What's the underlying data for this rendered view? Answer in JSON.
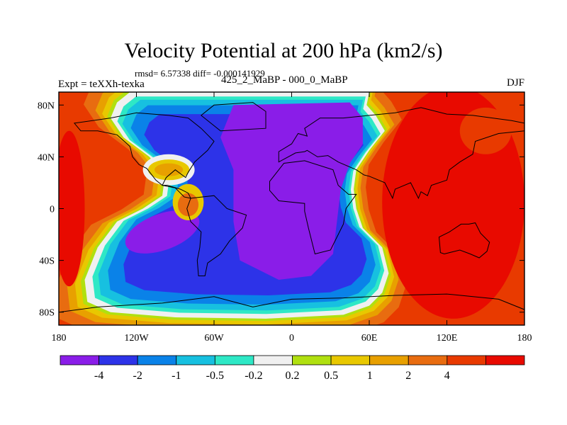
{
  "chart_data": {
    "type": "heatmap",
    "title": "Velocity Potential at 200 hPa (km2/s)",
    "stats_text": "rmsd= 6.57338 diff= -0.000141929",
    "left_label": "Expt = teXXh-texka",
    "center_label": "425_2_MaBP - 000_0_MaBP",
    "right_label": "DJF",
    "projection": "cylindrical equidistant, longitude 180 to 180, latitude 90S to 90N",
    "xlim": [
      -180,
      180
    ],
    "ylim": [
      -90,
      90
    ],
    "x_ticks": [
      {
        "value": -180,
        "label": "180"
      },
      {
        "value": -120,
        "label": "120W"
      },
      {
        "value": -60,
        "label": "60W"
      },
      {
        "value": 0,
        "label": "0"
      },
      {
        "value": 60,
        "label": "60E"
      },
      {
        "value": 120,
        "label": "120E"
      },
      {
        "value": 180,
        "label": "180"
      }
    ],
    "y_ticks": [
      {
        "value": 80,
        "label": "80N"
      },
      {
        "value": 40,
        "label": "40N"
      },
      {
        "value": 0,
        "label": "0"
      },
      {
        "value": -40,
        "label": "40S"
      },
      {
        "value": -80,
        "label": "80S"
      }
    ],
    "colorbar": {
      "colors": [
        "#8a1de8",
        "#2d33e8",
        "#0a82e8",
        "#17c0e0",
        "#2ee8c6",
        "#f0f0f0",
        "#b0e010",
        "#e8c800",
        "#e8a000",
        "#e86c10",
        "#e83a00",
        "#e80a00"
      ],
      "levels": [
        -4,
        -2,
        -1,
        -0.5,
        -0.2,
        0.2,
        0.5,
        1,
        2,
        4
      ],
      "tick_labels": [
        "-4",
        "-2",
        "-1",
        "-0.5",
        "-0.2",
        "0.2",
        "0.5",
        "1",
        "2",
        "4"
      ]
    },
    "field_description": "Strong negative centre (below -4) over Africa, Europe and Eurasia; negative band below -2 wrapping through the South Atlantic and Southern Ocean; positive values above 4 over the Indian Ocean, Australia and the central Pacific; secondary positive cells over North America near 30N 95W and the Gulf of Mexico.",
    "anomaly_centers": [
      {
        "lon": 30,
        "lat": 38,
        "value": -6.5
      },
      {
        "lon": 5,
        "lat": -25,
        "value": -5.5
      },
      {
        "lon": -100,
        "lat": -18,
        "value": -5.0
      },
      {
        "lon": -15,
        "lat": -65,
        "value": -2.5
      },
      {
        "lon": -95,
        "lat": 30,
        "value": 2.5
      },
      {
        "lon": -80,
        "lat": 5,
        "value": 2.0
      },
      {
        "lon": 120,
        "lat": 10,
        "value": 6.0
      },
      {
        "lon": -175,
        "lat": 0,
        "value": 5.0
      },
      {
        "lon": 150,
        "lat": 55,
        "value": 3.5
      }
    ]
  }
}
